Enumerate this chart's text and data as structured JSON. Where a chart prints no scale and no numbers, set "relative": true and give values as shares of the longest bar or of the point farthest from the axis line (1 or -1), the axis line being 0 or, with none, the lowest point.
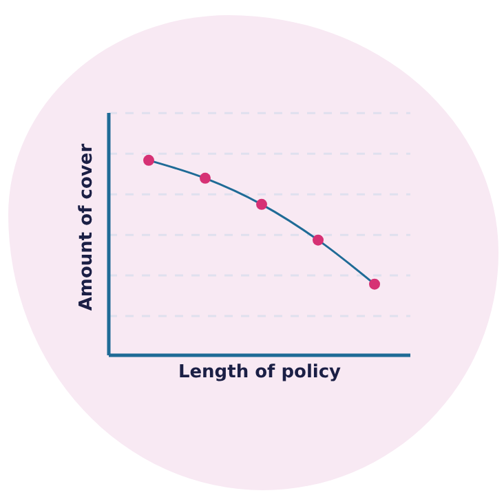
{
  "chart_data": {
    "type": "line",
    "xlabel": "Length of policy",
    "ylabel": "Amount of cover",
    "relative": true,
    "grid": "y",
    "marker": "circle",
    "categories": [
      null,
      null,
      null,
      null,
      null
    ],
    "series": [
      {
        "color": "#1f6b96",
        "colors": [
          "#d63174",
          "#d63174",
          "#d63174",
          "#d63174",
          "#d63174"
        ],
        "values": [
          1,
          0.908,
          0.774,
          0.591,
          0.365
        ]
      }
    ]
  }
}
